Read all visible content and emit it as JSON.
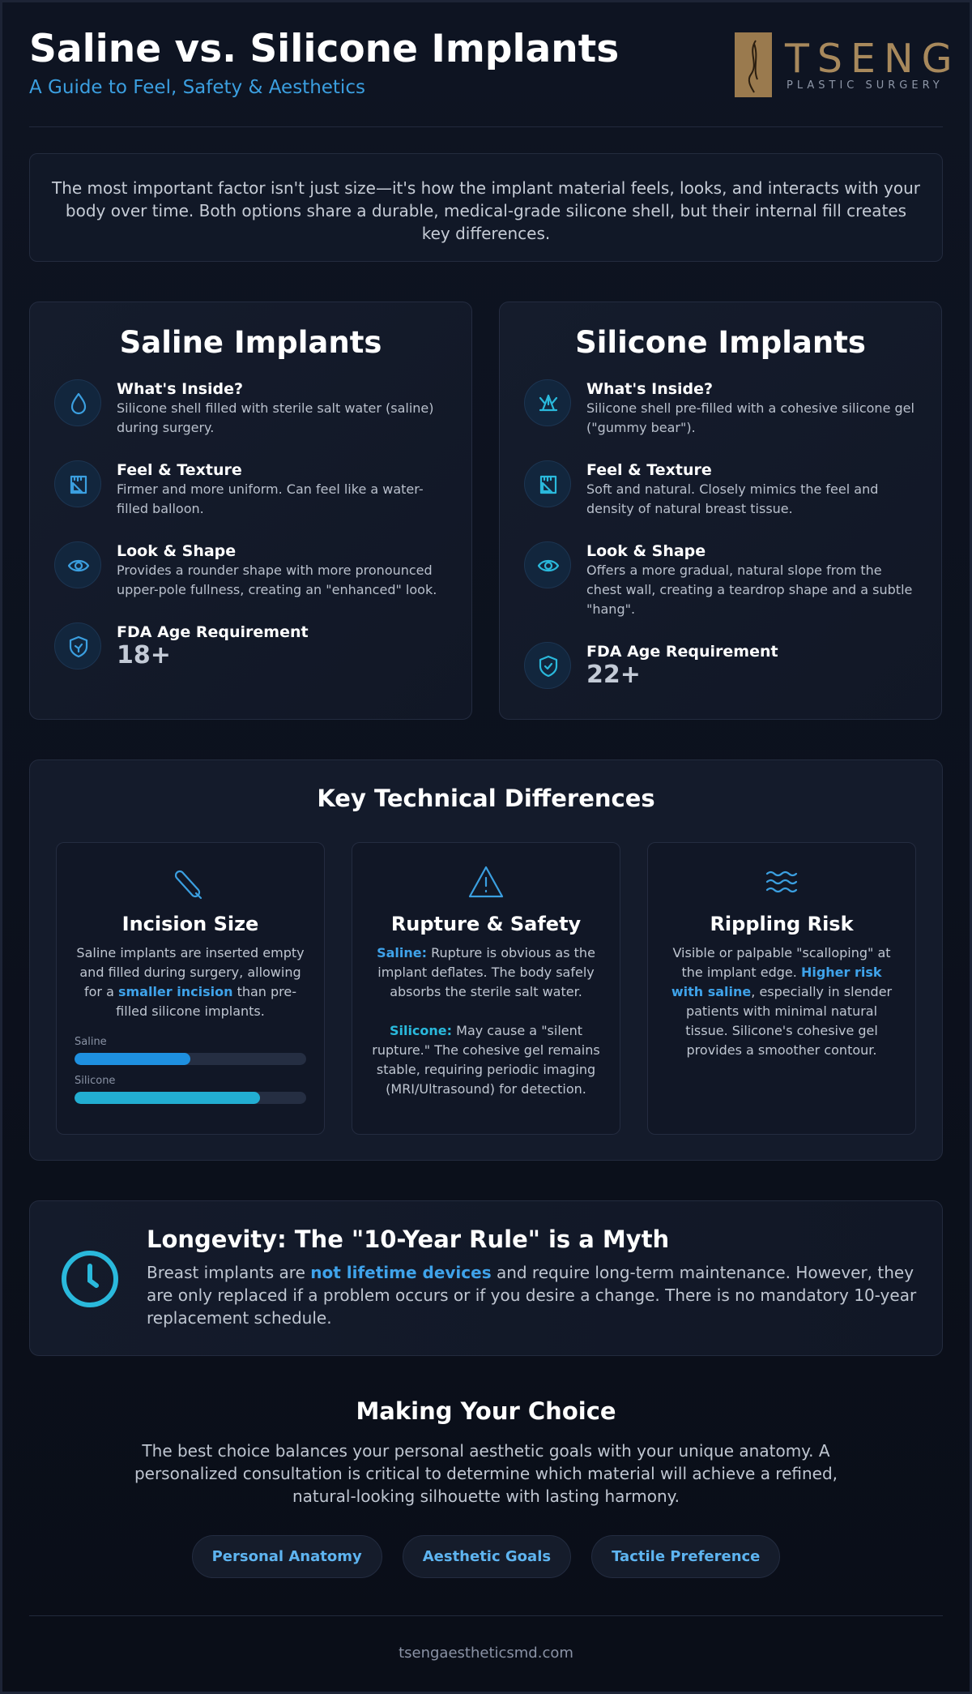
{
  "header": {
    "title": "Saline vs. Silicone Implants",
    "subtitle": "A Guide to Feel, Safety & Aesthetics",
    "logo": {
      "name": "TSENG",
      "tagline": "PLASTIC SURGERY"
    }
  },
  "intro": "The most important factor isn't just size—it's how the implant material feels, looks, and interacts with your body over time. Both options share a durable, medical-grade silicone shell, but their internal fill creates key differences.",
  "cards": [
    {
      "title": "Saline Implants",
      "items": [
        {
          "heading": "What's Inside?",
          "text": "Silicone shell filled with sterile salt water (saline) during surgery."
        },
        {
          "heading": "Feel & Texture",
          "text": "Firmer and more uniform. Can feel like a water-filled balloon."
        },
        {
          "heading": "Look & Shape",
          "text": "Provides a rounder shape with more pronounced upper-pole fullness, creating an \"enhanced\" look."
        },
        {
          "heading": "FDA Age Requirement",
          "value": "18+"
        }
      ]
    },
    {
      "title": "Silicone Implants",
      "items": [
        {
          "heading": "What's Inside?",
          "text": "Silicone shell pre-filled with a cohesive silicone gel (\"gummy bear\")."
        },
        {
          "heading": "Feel & Texture",
          "text": "Soft and natural. Closely mimics the feel and density of natural breast tissue."
        },
        {
          "heading": "Look & Shape",
          "text": "Offers a more gradual, natural slope from the chest wall, creating a teardrop shape and a subtle \"hang\"."
        },
        {
          "heading": "FDA Age Requirement",
          "value": "22+"
        }
      ]
    }
  ],
  "technical": {
    "title": "Key Technical Differences",
    "items": [
      {
        "heading": "Incision Size",
        "paragraphs": [
          [
            {
              "text": "Saline implants are inserted empty and filled during surgery, allowing for a "
            },
            {
              "text": "smaller incision",
              "color": "#3fa3ea"
            },
            {
              "text": " than pre-filled silicone implants."
            }
          ]
        ],
        "bars": {
          "xlim": [
            0,
            100
          ],
          "items": [
            {
              "label": "Saline",
              "value": 50,
              "color": "#1e90e0"
            },
            {
              "label": "Silicone",
              "value": 80,
              "color": "#22aed2"
            }
          ]
        }
      },
      {
        "heading": "Rupture & Safety",
        "paragraphs": [
          [
            {
              "text": "Saline:",
              "color": "#3fa3ea"
            },
            {
              "text": " Rupture is obvious as the implant deflates. The body safely absorbs the sterile salt water."
            }
          ],
          [
            {
              "text": "Silicone:",
              "color": "#2ab9dc"
            },
            {
              "text": " May cause a \"silent rupture.\" The cohesive gel remains stable, requiring periodic imaging (MRI/Ultrasound) for detection."
            }
          ]
        ]
      },
      {
        "heading": "Rippling Risk",
        "paragraphs": [
          [
            {
              "text": "Visible or palpable \"scalloping\" at the implant edge. "
            },
            {
              "text": "Higher risk with saline",
              "color": "#3fa3ea"
            },
            {
              "text": ", especially in slender patients with minimal natural tissue. Silicone's cohesive gel provides a smoother contour."
            }
          ]
        ]
      }
    ]
  },
  "longevity": {
    "title": "Longevity: The \"10-Year Rule\" is a Myth",
    "text": [
      {
        "text": "Breast implants are "
      },
      {
        "text": "not lifetime devices",
        "color": "#3fa3ea"
      },
      {
        "text": " and require long-term maintenance. However, they are only replaced if a problem occurs or if you desire a change. There is no mandatory 10-year replacement schedule."
      }
    ]
  },
  "choice": {
    "title": "Making Your Choice",
    "text": "The best choice balances your personal aesthetic goals with your unique anatomy. A personalized consultation is critical to determine which material will achieve a refined, natural-looking silhouette with lasting harmony.",
    "tags": [
      "Personal Anatomy",
      "Aesthetic Goals",
      "Tactile Preference"
    ]
  },
  "footer": "tsengaestheticsmd.com"
}
